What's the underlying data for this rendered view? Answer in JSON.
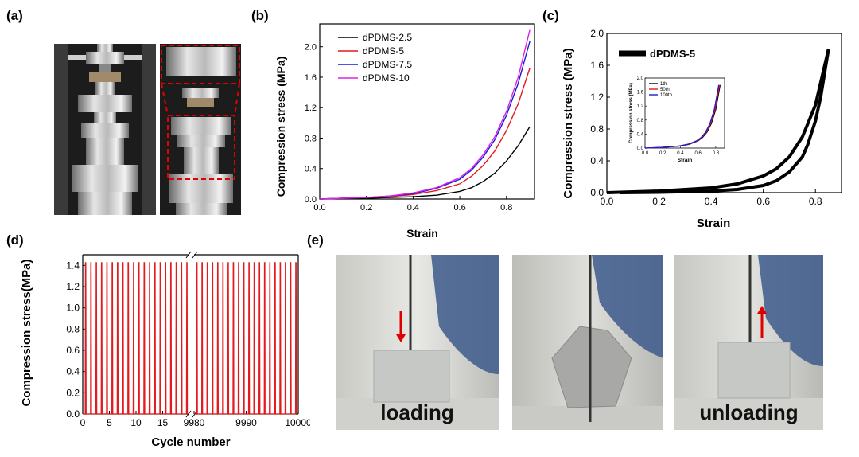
{
  "panels": {
    "a": "(a)",
    "b": "(b)",
    "c": "(c)",
    "d": "(d)",
    "e": "(e)"
  },
  "photos_e": [
    {
      "label": "loading",
      "arrow": "down"
    },
    {
      "label": "",
      "arrow": "none"
    },
    {
      "label": "unloading",
      "arrow": "up"
    }
  ],
  "chart_data": [
    {
      "panel": "b",
      "type": "line",
      "xlabel": "Strain",
      "ylabel": "Compression stress (MPa)",
      "xlim": [
        0,
        0.92
      ],
      "ylim": [
        0,
        2.3
      ],
      "xticks": [
        0.0,
        0.2,
        0.4,
        0.6,
        0.8
      ],
      "yticks": [
        0.0,
        0.4,
        0.8,
        1.2,
        1.6,
        2.0
      ],
      "xtick_labels": [
        "0.0",
        "0.2",
        "0.4",
        "0.6",
        "0.8"
      ],
      "ytick_labels": [
        "0.0",
        "0.4",
        "0.8",
        "1.2",
        "1.6",
        "2.0"
      ],
      "legend": "top-left",
      "series": [
        {
          "name": "dPDMS-2.5",
          "color": "#000000",
          "x": [
            0,
            0.1,
            0.2,
            0.3,
            0.4,
            0.5,
            0.6,
            0.65,
            0.7,
            0.75,
            0.8,
            0.85,
            0.9
          ],
          "y": [
            0,
            0.005,
            0.01,
            0.02,
            0.03,
            0.05,
            0.1,
            0.15,
            0.23,
            0.34,
            0.5,
            0.7,
            0.95
          ]
        },
        {
          "name": "dPDMS-5",
          "color": "#e41a1c",
          "x": [
            0,
            0.1,
            0.2,
            0.3,
            0.4,
            0.5,
            0.6,
            0.65,
            0.7,
            0.75,
            0.8,
            0.85,
            0.9
          ],
          "y": [
            0,
            0.01,
            0.02,
            0.03,
            0.06,
            0.11,
            0.2,
            0.3,
            0.44,
            0.63,
            0.9,
            1.25,
            1.72
          ]
        },
        {
          "name": "dPDMS-7.5",
          "color": "#1a1adc",
          "x": [
            0,
            0.1,
            0.2,
            0.3,
            0.4,
            0.5,
            0.6,
            0.65,
            0.7,
            0.75,
            0.8,
            0.85,
            0.9
          ],
          "y": [
            0,
            0.01,
            0.02,
            0.04,
            0.07,
            0.14,
            0.26,
            0.38,
            0.55,
            0.78,
            1.1,
            1.52,
            2.07
          ]
        },
        {
          "name": "dPDMS-10",
          "color": "#e020e0",
          "x": [
            0,
            0.1,
            0.2,
            0.3,
            0.4,
            0.5,
            0.6,
            0.65,
            0.7,
            0.75,
            0.8,
            0.85,
            0.9
          ],
          "y": [
            0,
            0.01,
            0.02,
            0.04,
            0.08,
            0.15,
            0.28,
            0.4,
            0.58,
            0.82,
            1.15,
            1.6,
            2.22
          ]
        }
      ]
    },
    {
      "panel": "c",
      "type": "line",
      "xlabel": "Strain",
      "ylabel": "Compression stress (MPa)",
      "xlim": [
        0,
        0.9
      ],
      "ylim": [
        0,
        2.0
      ],
      "xticks": [
        0.0,
        0.2,
        0.4,
        0.6,
        0.8
      ],
      "yticks": [
        0.0,
        0.4,
        0.8,
        1.2,
        1.6,
        2.0
      ],
      "xtick_labels": [
        "0.0",
        "0.2",
        "0.4",
        "0.6",
        "0.8"
      ],
      "ytick_labels": [
        "0.0",
        "0.4",
        "0.8",
        "1.2",
        "1.6",
        "2.0"
      ],
      "legend": "top-left",
      "series": [
        {
          "name": "dPDMS-5",
          "color": "#000000",
          "loading_x": [
            0,
            0.2,
            0.4,
            0.5,
            0.6,
            0.65,
            0.7,
            0.75,
            0.8,
            0.85
          ],
          "loading_y": [
            0,
            0.02,
            0.06,
            0.11,
            0.21,
            0.3,
            0.45,
            0.7,
            1.1,
            1.8
          ],
          "unloading_x": [
            0.85,
            0.82,
            0.8,
            0.77,
            0.75,
            0.7,
            0.65,
            0.6,
            0.5,
            0.4,
            0.2,
            0.05
          ],
          "unloading_y": [
            1.8,
            1.2,
            0.9,
            0.6,
            0.45,
            0.26,
            0.15,
            0.09,
            0.04,
            0.02,
            0.005,
            0
          ]
        }
      ]
    },
    {
      "panel": "c-inset",
      "type": "line",
      "xlabel": "Strain",
      "ylabel": "Compression stress (MPa)",
      "xlim": [
        0,
        0.9
      ],
      "ylim": [
        0,
        2.0
      ],
      "xticks": [
        0.0,
        0.2,
        0.4,
        0.6,
        0.8
      ],
      "yticks": [
        0.0,
        0.4,
        0.8,
        1.2,
        1.6,
        2.0
      ],
      "xtick_labels": [
        "0.0",
        "0.2",
        "0.4",
        "0.6",
        "0.8"
      ],
      "ytick_labels": [
        "0.0",
        "0.4",
        "0.8",
        "1.2",
        "1.6",
        "2.0"
      ],
      "legend": "top-left",
      "series": [
        {
          "name": "1th",
          "color": "#000000",
          "x": [
            0,
            0.2,
            0.4,
            0.5,
            0.6,
            0.65,
            0.7,
            0.75,
            0.8,
            0.85
          ],
          "y": [
            0,
            0.02,
            0.06,
            0.11,
            0.21,
            0.3,
            0.45,
            0.7,
            1.1,
            1.8
          ]
        },
        {
          "name": "50th",
          "color": "#e41a1c",
          "x": [
            0,
            0.2,
            0.4,
            0.5,
            0.6,
            0.65,
            0.7,
            0.75,
            0.8,
            0.85
          ],
          "y": [
            0,
            0.02,
            0.06,
            0.11,
            0.21,
            0.3,
            0.45,
            0.7,
            1.1,
            1.8
          ]
        },
        {
          "name": "100th",
          "color": "#1a1adc",
          "x": [
            0,
            0.2,
            0.4,
            0.5,
            0.6,
            0.65,
            0.7,
            0.75,
            0.8,
            0.85
          ],
          "y": [
            0,
            0.02,
            0.06,
            0.11,
            0.21,
            0.3,
            0.45,
            0.7,
            1.1,
            1.8
          ]
        }
      ]
    },
    {
      "panel": "d",
      "type": "line",
      "xlabel": "Cycle number",
      "ylabel": "Compression stress(MPa)",
      "ylim": [
        0,
        1.5
      ],
      "yticks": [
        0.0,
        0.2,
        0.4,
        0.6,
        0.8,
        1.0,
        1.2,
        1.4
      ],
      "ytick_labels": [
        "0.0",
        "0.2",
        "0.4",
        "0.6",
        "0.8",
        "1.0",
        "1.2",
        "1.4"
      ],
      "broken_x_axis": true,
      "segments": [
        {
          "xlim": [
            0,
            20
          ],
          "xticks": [
            0,
            5,
            10,
            15
          ],
          "xtick_labels": [
            "0",
            "5",
            "10",
            "15"
          ]
        },
        {
          "xlim": [
            9980,
            10000
          ],
          "xticks": [
            9980,
            9990,
            10000
          ],
          "xtick_labels": [
            "9980",
            "9990",
            "10000"
          ]
        }
      ],
      "peak_stress": 1.43,
      "color": "#e41a1c"
    }
  ]
}
